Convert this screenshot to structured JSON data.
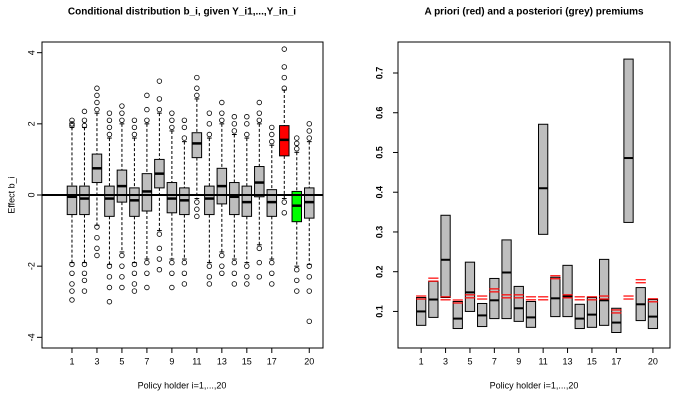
{
  "chart_data": [
    {
      "type": "boxplot",
      "title": "Conditional distribution b_i, given Y_i1,...,Y_in_i",
      "x_label": "Policy holder i=1,...,20",
      "y_label": "Effect b_i",
      "x": [
        1,
        2,
        3,
        4,
        5,
        6,
        7,
        8,
        9,
        10,
        11,
        12,
        13,
        14,
        15,
        16,
        17,
        18,
        19,
        20
      ],
      "median": [
        -0.05,
        -0.1,
        0.75,
        -0.1,
        0.25,
        -0.15,
        0.1,
        0.6,
        -0.1,
        -0.15,
        1.45,
        -0.1,
        0.25,
        -0.05,
        -0.2,
        0.35,
        -0.2,
        1.55,
        -0.3,
        -0.2
      ],
      "q1": [
        -0.55,
        -0.55,
        0.35,
        -0.6,
        -0.2,
        -0.6,
        -0.45,
        0.2,
        -0.5,
        -0.55,
        1.05,
        -0.55,
        -0.25,
        -0.55,
        -0.6,
        -0.05,
        -0.6,
        1.1,
        -0.75,
        -0.65
      ],
      "q3": [
        0.25,
        0.25,
        1.15,
        0.25,
        0.7,
        0.2,
        0.6,
        1.0,
        0.35,
        0.2,
        1.75,
        0.25,
        0.75,
        0.35,
        0.25,
        0.8,
        0.15,
        1.95,
        0.1,
        0.2
      ],
      "whisker_low": [
        -1.9,
        -1.9,
        -0.85,
        -1.95,
        -1.6,
        -1.9,
        -1.8,
        -1.0,
        -1.8,
        -1.8,
        -0.1,
        -1.9,
        -1.6,
        -1.8,
        -1.9,
        -1.4,
        -1.8,
        -0.1,
        -2.0,
        -1.95
      ],
      "whisker_high": [
        1.9,
        1.9,
        2.3,
        1.6,
        2.0,
        1.6,
        2.0,
        2.3,
        1.8,
        1.5,
        2.7,
        1.6,
        2.0,
        1.7,
        1.6,
        2.0,
        1.4,
        2.95,
        1.2,
        1.5
      ],
      "outliers": [
        [
          1.95,
          2.0,
          2.1,
          -1.95,
          -2.2,
          -2.5,
          -2.7,
          -2.95
        ],
        [
          1.95,
          2.1,
          2.35,
          -1.95,
          -2.2,
          -2.4,
          -2.7
        ],
        [
          2.4,
          2.6,
          2.8,
          3.0,
          -0.9,
          -1.2,
          -1.5,
          -1.7
        ],
        [
          1.7,
          1.9,
          2.1,
          2.3,
          -2.0,
          -2.3,
          -2.6,
          -3.0
        ],
        [
          2.1,
          2.3,
          2.5,
          -1.7,
          -2.0,
          -2.3,
          -2.6
        ],
        [
          1.7,
          1.9,
          2.1,
          -1.95,
          -2.2,
          -2.5,
          -2.7
        ],
        [
          2.1,
          2.4,
          2.8,
          -1.9,
          -2.2,
          -2.6
        ],
        [
          2.4,
          2.7,
          3.2,
          -1.1,
          -1.5,
          -1.8,
          -2.1
        ],
        [
          1.9,
          2.1,
          2.3,
          -1.9,
          -2.2,
          -2.6
        ],
        [
          1.6,
          1.9,
          2.1,
          -1.9,
          -2.2,
          -2.5
        ],
        [
          2.8,
          3.0,
          3.3,
          -0.2,
          -0.4,
          -0.6
        ],
        [
          1.7,
          2.0,
          2.3,
          -2.0,
          -2.3,
          -2.5
        ],
        [
          2.1,
          2.3,
          2.6,
          -1.7,
          -2.0,
          -2.2
        ],
        [
          1.8,
          2.0,
          2.2,
          -1.9,
          -2.2,
          -2.5
        ],
        [
          1.7,
          2.0,
          2.2,
          -2.0,
          -2.3,
          -2.5
        ],
        [
          2.1,
          2.3,
          2.6,
          -1.5,
          -1.9,
          -2.3
        ],
        [
          1.5,
          1.7,
          1.9,
          -1.9,
          -2.2,
          -2.5
        ],
        [
          3.0,
          3.3,
          3.6,
          4.1,
          -0.2,
          -0.5
        ],
        [
          1.3,
          1.45,
          1.6,
          -2.1,
          -2.4,
          -2.7
        ],
        [
          1.6,
          1.8,
          2.0,
          -2.0,
          -2.3,
          -2.7,
          -3.55
        ]
      ],
      "colors": [
        "#bebebe",
        "#bebebe",
        "#bebebe",
        "#bebebe",
        "#bebebe",
        "#bebebe",
        "#bebebe",
        "#bebebe",
        "#bebebe",
        "#bebebe",
        "#bebebe",
        "#bebebe",
        "#bebebe",
        "#bebebe",
        "#bebebe",
        "#bebebe",
        "#bebebe",
        "#ff0000",
        "#00ff00",
        "#bebebe"
      ],
      "hline": 0,
      "xlim": [
        -1.4,
        21.1
      ],
      "xticks": [
        1,
        3,
        5,
        7,
        9,
        11,
        13,
        15,
        17,
        20
      ],
      "ylim": [
        -4.3,
        4.3
      ],
      "yticks": [
        -4,
        -2,
        0,
        2,
        4
      ]
    },
    {
      "type": "range",
      "title": "A priori (red) and a posteriori (grey) premiums",
      "x_label": "Policy holder i=1,...,20",
      "x": [
        1,
        2,
        3,
        4,
        5,
        6,
        7,
        8,
        9,
        10,
        11,
        12,
        13,
        14,
        15,
        16,
        17,
        18,
        19,
        20
      ],
      "low": [
        0.065,
        0.085,
        0.135,
        0.057,
        0.1,
        0.062,
        0.082,
        0.082,
        0.075,
        0.06,
        0.294,
        0.087,
        0.087,
        0.057,
        0.06,
        0.065,
        0.047,
        0.324,
        0.077,
        0.057
      ],
      "median": [
        0.1,
        0.13,
        0.23,
        0.082,
        0.148,
        0.09,
        0.128,
        0.198,
        0.108,
        0.085,
        0.41,
        0.133,
        0.138,
        0.082,
        0.092,
        0.128,
        0.072,
        0.486,
        0.118,
        0.087
      ],
      "high": [
        0.135,
        0.176,
        0.342,
        0.125,
        0.224,
        0.12,
        0.183,
        0.28,
        0.163,
        0.125,
        0.571,
        0.186,
        0.216,
        0.118,
        0.135,
        0.231,
        0.108,
        0.735,
        0.16,
        0.13
      ],
      "color": "#bebebe",
      "a_priori": {
        "color": "#ff0000",
        "values": [
          0.135,
          0.18,
          0.133,
          0.125,
          0.138,
          0.135,
          0.153,
          0.138,
          0.138,
          0.133,
          0.133,
          0.186,
          0.138,
          0.133,
          0.133,
          0.135,
          0.1,
          0.135,
          0.176,
          0.128
        ]
      },
      "xlim": [
        -0.9,
        21.4
      ],
      "xticks": [
        1,
        3,
        5,
        7,
        9,
        11,
        13,
        15,
        17,
        20
      ],
      "ylim": [
        0.008,
        0.778
      ],
      "yticks": [
        0.1,
        0.2,
        0.3,
        0.4,
        0.5,
        0.6,
        0.7
      ]
    }
  ]
}
